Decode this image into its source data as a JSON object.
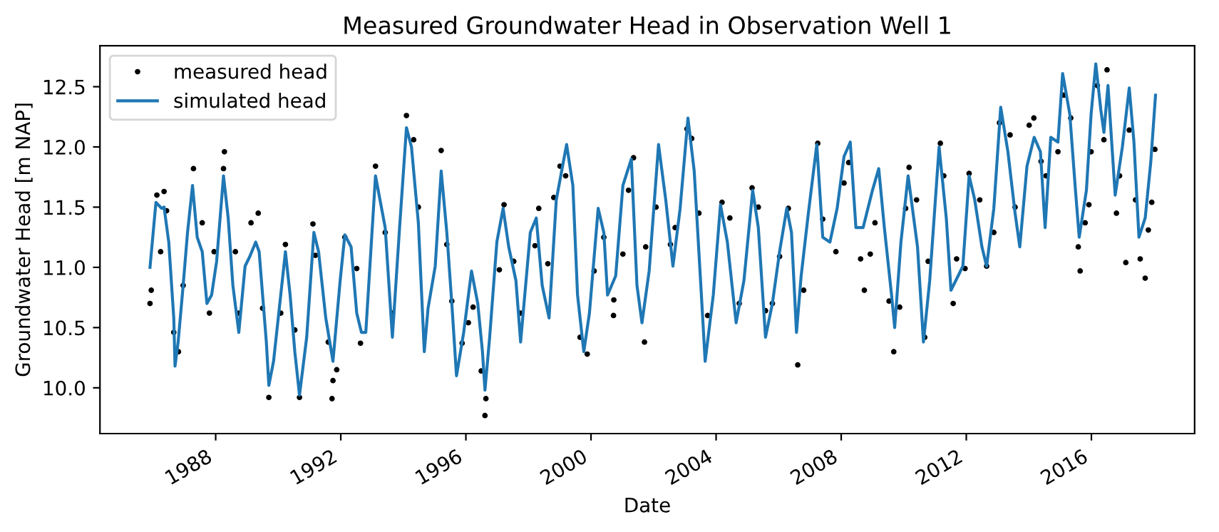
{
  "chart_data": {
    "type": "line",
    "title": "Measured Groundwater Head in Observation Well 1",
    "xlabel": "Date",
    "ylabel": "Groundwater Head [m NAP]",
    "xlim": [
      1984.3,
      2019.3
    ],
    "xticks": [
      1988,
      1992,
      1996,
      2000,
      2004,
      2008,
      2012,
      2016
    ],
    "ylim": [
      9.62,
      12.84
    ],
    "yticks": [
      {
        "value": 10,
        "label": "10.0"
      },
      10.5,
      {
        "value": 11,
        "label": "11.0"
      },
      11.5,
      {
        "value": 12,
        "label": "12.0"
      },
      12.5
    ],
    "legend": "top left",
    "grid": false,
    "series": [
      {
        "name": "measured head",
        "type": "scatter",
        "marker": "circle",
        "color": "#000000",
        "x": [
          1985.9,
          1985.94,
          1986.12,
          1986.24,
          1986.35,
          1986.43,
          1986.66,
          1986.81,
          1986.96,
          1987.29,
          1987.57,
          1987.8,
          1987.95,
          1988.25,
          1988.28,
          1988.63,
          1988.74,
          1989.13,
          1989.36,
          1989.5,
          1989.7,
          1990.08,
          1990.23,
          1990.53,
          1990.68,
          1991.11,
          1991.19,
          1991.6,
          1991.72,
          1991.75,
          1991.87,
          1992.13,
          1992.51,
          1992.63,
          1993.11,
          1993.42,
          1993.65,
          1994.1,
          1994.33,
          1994.48,
          1995.21,
          1995.39,
          1995.55,
          1995.88,
          1996.08,
          1996.23,
          1996.49,
          1996.61,
          1996.64,
          1997.07,
          1997.22,
          1997.53,
          1997.75,
          1998.21,
          1998.33,
          1998.62,
          1998.81,
          1999.01,
          1999.19,
          1999.65,
          1999.88,
          2000.1,
          2000.41,
          2000.72,
          2000.73,
          2001.02,
          2001.2,
          2001.36,
          2001.71,
          2001.75,
          2002.08,
          2002.54,
          2002.69,
          2003.07,
          2003.22,
          2003.45,
          2003.73,
          2004.19,
          2004.44,
          2004.74,
          2005.15,
          2005.35,
          2005.58,
          2005.8,
          2006.03,
          2006.31,
          2006.61,
          2006.8,
          2007.25,
          2007.41,
          2007.83,
          2008.09,
          2008.24,
          2008.62,
          2008.74,
          2008.93,
          2009.08,
          2009.53,
          2009.68,
          2009.87,
          2010.06,
          2010.17,
          2010.41,
          2010.67,
          2010.78,
          2011.17,
          2011.28,
          2011.58,
          2011.69,
          2011.96,
          2012.09,
          2012.43,
          2012.65,
          2012.88,
          2013.06,
          2013.4,
          2013.56,
          2014.01,
          2014.16,
          2014.39,
          2014.55,
          2014.93,
          2015.12,
          2015.34,
          2015.58,
          2015.64,
          2015.8,
          2015.92,
          2015.99,
          2016.19,
          2016.4,
          2016.5,
          2016.8,
          2016.9,
          2017.1,
          2017.21,
          2017.41,
          2017.56,
          2017.72,
          2017.82,
          2017.93,
          2018.03
        ],
        "values": [
          10.7,
          10.81,
          11.6,
          11.13,
          11.63,
          11.47,
          10.46,
          10.3,
          10.85,
          11.82,
          11.37,
          10.62,
          11.13,
          11.82,
          11.96,
          11.13,
          10.62,
          11.37,
          11.45,
          10.66,
          9.92,
          10.62,
          11.19,
          10.48,
          9.92,
          11.36,
          11.1,
          10.38,
          9.91,
          10.06,
          10.15,
          11.25,
          10.99,
          10.37,
          11.84,
          11.29,
          10.62,
          12.26,
          12.06,
          11.5,
          11.97,
          11.19,
          10.72,
          10.37,
          10.54,
          10.67,
          10.14,
          9.77,
          9.91,
          10.98,
          11.52,
          11.05,
          10.62,
          11.18,
          11.49,
          11.03,
          11.58,
          11.84,
          11.76,
          10.42,
          10.28,
          10.97,
          11.25,
          10.6,
          10.73,
          11.11,
          11.64,
          11.91,
          10.38,
          11.17,
          11.5,
          11.19,
          11.33,
          12.15,
          12.07,
          11.45,
          10.6,
          11.54,
          11.41,
          10.7,
          11.66,
          11.5,
          10.64,
          10.7,
          11.09,
          11.49,
          10.19,
          10.81,
          12.03,
          11.4,
          11.13,
          11.7,
          11.87,
          11.07,
          10.81,
          11.11,
          11.37,
          10.72,
          10.3,
          10.67,
          11.49,
          11.83,
          11.56,
          10.42,
          11.05,
          12.03,
          11.76,
          10.7,
          11.07,
          10.99,
          11.78,
          11.56,
          11.01,
          11.29,
          12.2,
          12.1,
          11.5,
          12.18,
          12.24,
          11.88,
          11.76,
          11.96,
          12.43,
          12.24,
          11.17,
          10.97,
          11.37,
          11.52,
          11.96,
          12.51,
          12.06,
          12.64,
          11.45,
          11.76,
          11.04,
          12.14,
          11.56,
          11.07,
          10.91,
          11.31,
          11.54,
          11.98
        ]
      },
      {
        "name": "simulated head",
        "marker": "none",
        "line_style": "solid",
        "color": "#1f77b4",
        "x": [
          1985.9,
          1986.09,
          1986.27,
          1986.35,
          1986.5,
          1986.66,
          1986.7,
          1986.8,
          1986.96,
          1987.1,
          1987.26,
          1987.41,
          1987.57,
          1987.72,
          1987.87,
          1988.03,
          1988.25,
          1988.4,
          1988.55,
          1988.74,
          1988.94,
          1989.09,
          1989.28,
          1989.39,
          1989.62,
          1989.7,
          1989.85,
          1990.08,
          1990.23,
          1990.38,
          1990.53,
          1990.68,
          1990.91,
          1991.14,
          1991.29,
          1991.52,
          1991.75,
          1991.98,
          1992.13,
          1992.33,
          1992.51,
          1992.66,
          1992.8,
          1993.11,
          1993.42,
          1993.65,
          1993.88,
          1994.1,
          1994.26,
          1994.48,
          1994.67,
          1994.79,
          1995.02,
          1995.21,
          1995.39,
          1995.55,
          1995.7,
          1995.93,
          1996.18,
          1996.38,
          1996.53,
          1996.61,
          1996.76,
          1996.99,
          1997.19,
          1997.37,
          1997.6,
          1997.75,
          1998.06,
          1998.25,
          1998.44,
          1998.66,
          1998.89,
          1999.22,
          1999.42,
          1999.57,
          1999.77,
          1999.95,
          2000.23,
          2000.41,
          2000.53,
          2000.79,
          2001.02,
          2001.29,
          2001.47,
          2001.63,
          2001.86,
          2002.16,
          2002.39,
          2002.62,
          2002.85,
          2003.1,
          2003.3,
          2003.53,
          2003.65,
          2003.91,
          2004.14,
          2004.36,
          2004.64,
          2004.89,
          2005.17,
          2005.35,
          2005.58,
          2005.8,
          2006.03,
          2006.26,
          2006.41,
          2006.57,
          2006.72,
          2006.95,
          2007.22,
          2007.41,
          2007.64,
          2007.87,
          2008.09,
          2008.29,
          2008.47,
          2008.7,
          2009.0,
          2009.2,
          2009.38,
          2009.61,
          2009.71,
          2009.91,
          2010.14,
          2010.44,
          2010.63,
          2010.83,
          2011.13,
          2011.36,
          2011.51,
          2011.74,
          2011.89,
          2012.09,
          2012.27,
          2012.5,
          2012.65,
          2012.88,
          2013.1,
          2013.33,
          2013.56,
          2013.71,
          2013.94,
          2014.17,
          2014.37,
          2014.52,
          2014.7,
          2014.93,
          2015.08,
          2015.31,
          2015.49,
          2015.61,
          2015.84,
          2015.99,
          2016.14,
          2016.3,
          2016.4,
          2016.53,
          2016.76,
          2016.99,
          2017.21,
          2017.36,
          2017.52,
          2017.72,
          2017.9,
          2018.05
        ],
        "values": [
          11.0,
          11.54,
          11.49,
          11.5,
          11.21,
          10.58,
          10.18,
          10.38,
          10.85,
          11.29,
          11.68,
          11.25,
          11.13,
          10.7,
          10.77,
          11.05,
          11.76,
          11.41,
          10.85,
          10.46,
          11.01,
          11.09,
          11.21,
          11.13,
          10.38,
          10.02,
          10.22,
          10.77,
          11.13,
          10.77,
          10.3,
          9.94,
          10.42,
          11.29,
          11.13,
          10.58,
          10.22,
          10.89,
          11.27,
          11.17,
          10.62,
          10.46,
          10.46,
          11.76,
          11.33,
          10.42,
          11.33,
          12.16,
          12.0,
          11.37,
          10.3,
          10.66,
          11.01,
          11.8,
          11.29,
          10.7,
          10.1,
          10.46,
          10.97,
          10.7,
          10.3,
          9.98,
          10.42,
          11.21,
          11.49,
          11.17,
          10.89,
          10.38,
          11.29,
          11.41,
          10.85,
          10.58,
          11.56,
          12.02,
          11.68,
          10.77,
          10.3,
          10.62,
          11.49,
          11.29,
          10.77,
          10.93,
          11.68,
          11.9,
          10.85,
          10.54,
          10.97,
          12.02,
          11.56,
          11.01,
          11.49,
          12.24,
          11.8,
          10.77,
          10.22,
          10.77,
          11.52,
          11.21,
          10.54,
          10.89,
          11.64,
          11.33,
          10.42,
          10.7,
          11.13,
          11.49,
          11.29,
          10.46,
          10.93,
          11.45,
          12.02,
          11.25,
          11.21,
          11.49,
          11.92,
          12.04,
          11.33,
          11.33,
          11.64,
          11.82,
          11.33,
          10.77,
          10.5,
          11.21,
          11.76,
          11.17,
          10.38,
          10.89,
          12.0,
          11.41,
          10.81,
          10.93,
          11.01,
          11.76,
          11.56,
          11.17,
          11.01,
          11.49,
          12.33,
          11.96,
          11.45,
          11.17,
          11.84,
          12.08,
          11.96,
          11.33,
          12.08,
          12.04,
          12.61,
          12.27,
          11.64,
          11.25,
          11.64,
          12.27,
          12.69,
          12.31,
          12.12,
          12.51,
          11.6,
          12.0,
          12.49,
          12.04,
          11.25,
          11.41,
          11.88,
          12.43
        ]
      }
    ]
  }
}
